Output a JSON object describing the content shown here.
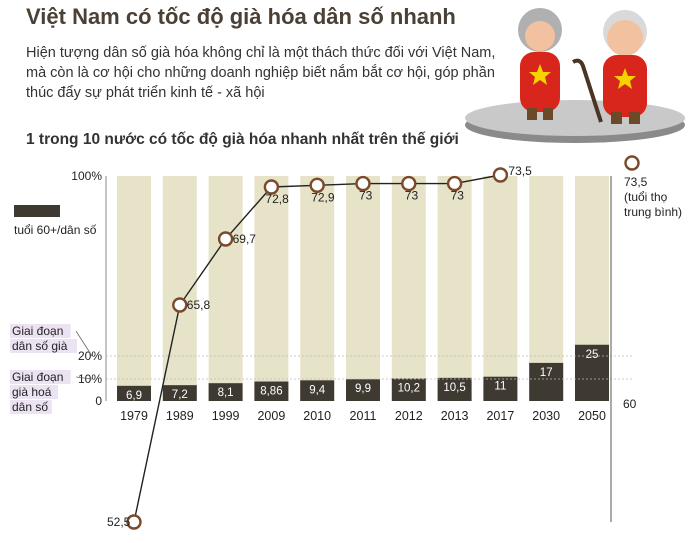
{
  "title": "Việt Nam có tốc độ già hóa dân số nhanh",
  "description": "Hiện tượng dân số già hóa không chỉ là một thách thức đối với Việt Nam, mà còn là cơ hội cho những doanh nghiệp biết nắm bắt cơ hội, góp phần thúc đẩy sự phát triển kinh tế - xã hội",
  "subtitle": "1 trong 10 nước có tốc độ già hóa nhanh nhất trên thế giới",
  "colors": {
    "bar_background": "#e6e3c8",
    "bar_fill": "#3f3a31",
    "line": "#222222",
    "marker": "#7a4a2a",
    "stage_highlight": "#ece3f2"
  },
  "chart_data": {
    "type": "bar",
    "categories": [
      "1979",
      "1989",
      "1999",
      "2009",
      "2010",
      "2011",
      "2012",
      "2013",
      "2017",
      "2030",
      "2050"
    ],
    "series": [
      {
        "name": "tuổi 60+/dân số",
        "type": "bar",
        "values": [
          6.9,
          7.2,
          8.1,
          8.86,
          9.4,
          9.9,
          10.2,
          10.5,
          11,
          17,
          25
        ],
        "labels": [
          "6,9",
          "7,2",
          "8,1",
          "8,86",
          "9,4",
          "9,9",
          "10,2",
          "10,5",
          "11",
          "17",
          "25"
        ],
        "unit": "%"
      },
      {
        "name": "tuổi thọ trung bình",
        "type": "line",
        "x": [
          "1979",
          "1989",
          "1999",
          "2009",
          "2010",
          "2011",
          "2012",
          "2013",
          "2017"
        ],
        "values": [
          52.5,
          65.8,
          69.7,
          72.8,
          72.9,
          73,
          73,
          73,
          73.5
        ],
        "labels": [
          "52,5",
          "65,8",
          "69,7",
          "72,8",
          "72,9",
          "73",
          "73",
          "73",
          "73,5"
        ]
      }
    ],
    "left_axis": {
      "ticks": [
        "0",
        "10%",
        "20%",
        "100%"
      ],
      "values": [
        0,
        10,
        20,
        100
      ],
      "range": [
        0,
        100
      ]
    },
    "right_axis": {
      "ticks": [
        "60"
      ],
      "values": [
        60
      ]
    },
    "legend": {
      "bar_label": "tuổi 60+/dân số",
      "line_value": "73,5",
      "line_label": "(tuổi thọ trung bình)",
      "line_label_lines": [
        "(tuổi thọ",
        "trung bình)"
      ]
    },
    "stages": [
      {
        "label_lines": [
          "Giai đoạn",
          "dân số già"
        ],
        "threshold": 20
      },
      {
        "label_lines": [
          "Giai đoạn",
          "già hoá",
          "dân số"
        ],
        "threshold": 10
      }
    ]
  }
}
